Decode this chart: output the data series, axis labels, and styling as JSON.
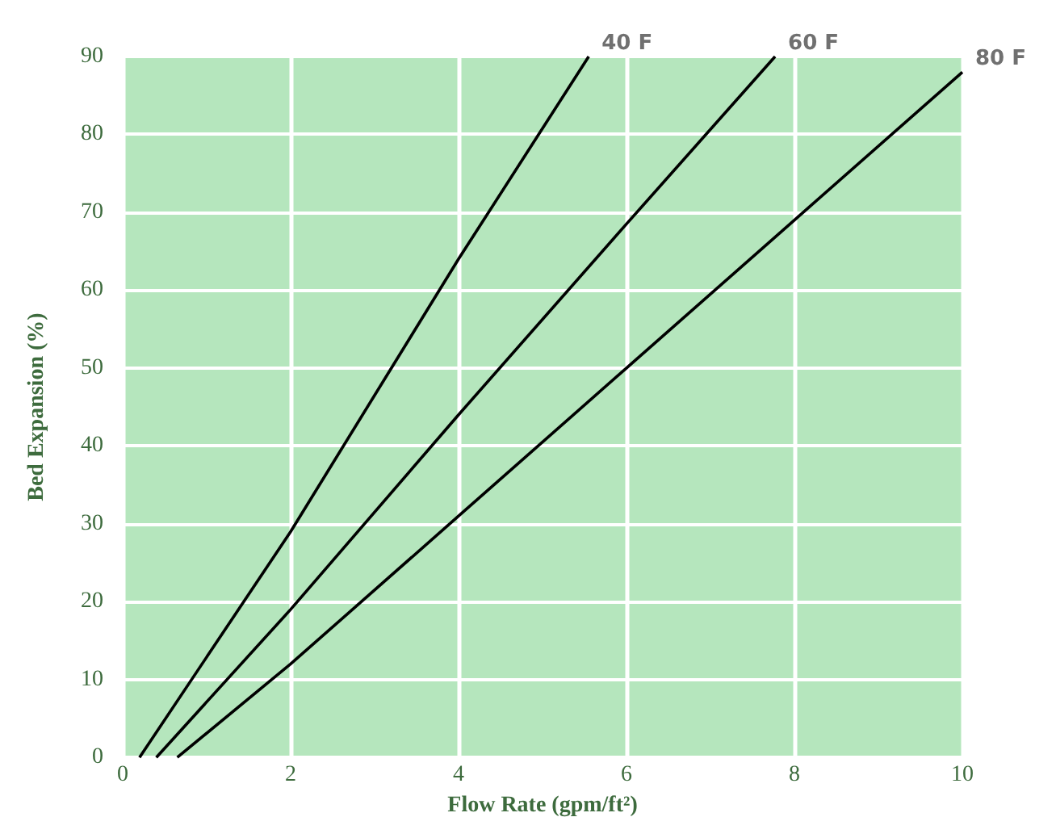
{
  "chart_data": {
    "type": "line",
    "xlabel": "Flow Rate (gpm/ft²)",
    "ylabel": "Bed Expansion (%)",
    "xlim": [
      0,
      10
    ],
    "xticks": [
      0,
      2,
      4,
      6,
      8,
      10
    ],
    "ylim": [
      0,
      90
    ],
    "yticks": [
      0,
      10,
      20,
      30,
      40,
      50,
      60,
      70,
      80,
      90
    ],
    "grid": true,
    "legend": false,
    "marker": "none",
    "line_style": "solid",
    "series": [
      {
        "name": "40 F",
        "color": "#000000",
        "x": [
          0.2,
          2,
          4,
          5.55
        ],
        "values": [
          0,
          29,
          64,
          90
        ]
      },
      {
        "name": "60 F",
        "color": "#000000",
        "x": [
          0.4,
          2,
          4,
          6,
          7.77
        ],
        "values": [
          0,
          19,
          44,
          68.5,
          90
        ]
      },
      {
        "name": "80 F",
        "color": "#000000",
        "x": [
          0.65,
          2,
          4,
          6,
          8,
          10
        ],
        "values": [
          0,
          12,
          31,
          50,
          69,
          88
        ]
      }
    ]
  }
}
